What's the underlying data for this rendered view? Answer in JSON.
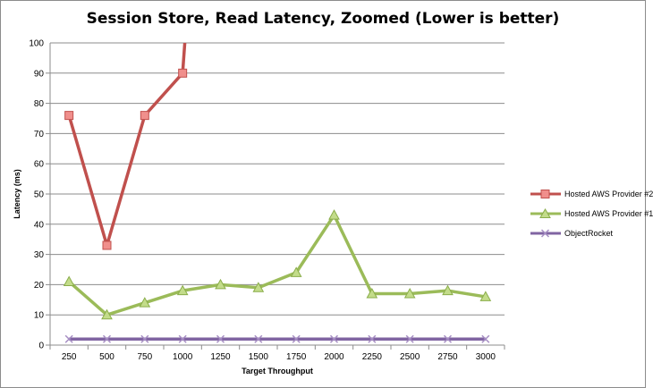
{
  "chart_data": {
    "type": "line",
    "title": "Session Store, Read Latency, Zoomed (Lower is better)",
    "xlabel": "Target Throughput",
    "ylabel": "Latency (ms)",
    "categories": [
      "250",
      "500",
      "750",
      "1000",
      "1250",
      "1500",
      "1750",
      "2000",
      "2250",
      "2500",
      "2750",
      "3000"
    ],
    "ylim": [
      0,
      100
    ],
    "yticks": [
      "0",
      "10",
      "20",
      "30",
      "40",
      "50",
      "60",
      "70",
      "80",
      "90",
      "100"
    ],
    "grid": true,
    "legend_position": "right",
    "series": [
      {
        "name": "Hosted AWS Provider #2",
        "color": "#d9534f",
        "marker": "square",
        "values": [
          76,
          33,
          76,
          90,
          null,
          null,
          null,
          null,
          null,
          null,
          null,
          null
        ],
        "continues_above": true
      },
      {
        "name": "Hosted AWS Provider #1",
        "color": "#9bbb59",
        "marker": "triangle",
        "values": [
          21,
          10,
          14,
          18,
          20,
          19,
          24,
          43,
          17,
          17,
          18,
          16
        ]
      },
      {
        "name": "ObjectRocket",
        "color": "#8064a2",
        "marker": "x",
        "values": [
          2,
          2,
          2,
          2,
          2,
          2,
          2,
          2,
          2,
          2,
          2,
          2
        ]
      }
    ]
  }
}
